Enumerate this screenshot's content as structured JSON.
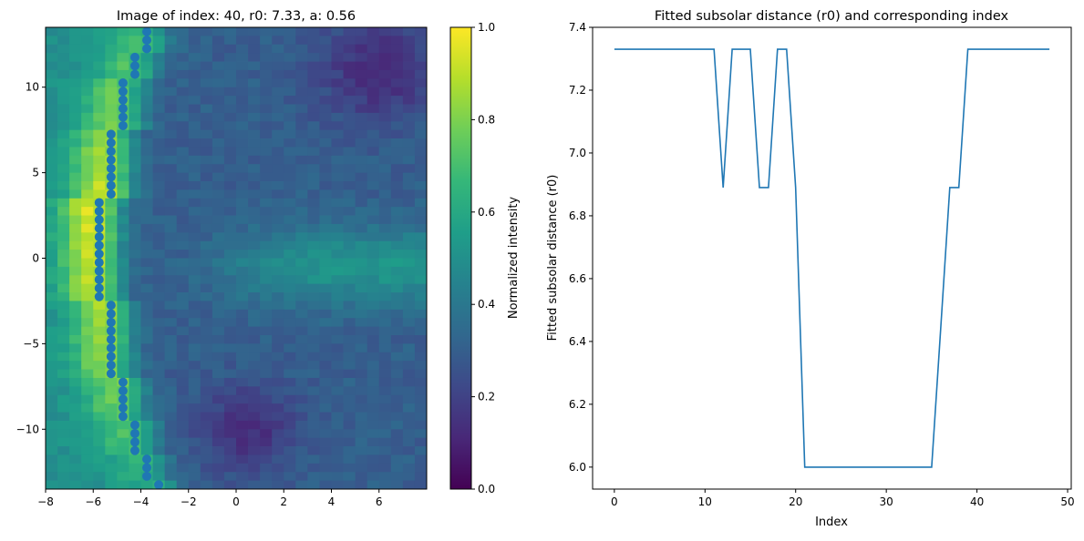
{
  "chart_data": [
    {
      "type": "heatmap",
      "title": "Image of index: 40, r0: 7.33, a: 0.56",
      "xlabel": "",
      "ylabel": "",
      "xlim": [
        -8,
        8
      ],
      "ylim": [
        -13.5,
        13.5
      ],
      "cell_size": 0.5,
      "xticks": [
        -8,
        -6,
        -4,
        -2,
        0,
        2,
        4,
        6
      ],
      "yticks": [
        -10,
        -5,
        0,
        5,
        10
      ],
      "colormap": "viridis",
      "colorbar": {
        "label": "Normalized intensity",
        "range": [
          0,
          1
        ],
        "ticks": [
          "0.0",
          "0.2",
          "0.4",
          "0.6",
          "0.8",
          "1.0"
        ]
      },
      "intensity_model": {
        "left_of_ridge_level": 0.5,
        "ridge_peak": [
          [
            13.25,
            0.66
          ],
          [
            8,
            0.8
          ],
          [
            3,
            0.95
          ],
          [
            0,
            0.92
          ],
          [
            -3,
            0.88
          ],
          [
            -8,
            0.78
          ],
          [
            -13.25,
            0.62
          ]
        ],
        "background_level": 0.3,
        "background_features": [
          {
            "kind": "bright-band",
            "x_from": 0,
            "y_center": -0.5,
            "y_spread": 2.2,
            "delta": 0.22
          },
          {
            "kind": "dark-blob",
            "x_center": 6,
            "y_center": 11,
            "x_spread": 2.5,
            "y_spread": 3,
            "delta": -0.18
          },
          {
            "kind": "dark-blob",
            "x_center": 0.5,
            "y_center": -10,
            "x_spread": 2,
            "y_spread": 2.5,
            "delta": -0.17
          }
        ]
      },
      "scatter": {
        "color": "#1f77b4",
        "groups": [
          {
            "x": -3.75,
            "y": [
              13.25,
              12.75,
              12.25
            ]
          },
          {
            "x": -4.25,
            "y": [
              11.75,
              11.25,
              10.75
            ]
          },
          {
            "x": -4.75,
            "y": [
              10.25,
              9.75,
              9.25,
              8.75,
              8.25,
              7.75
            ]
          },
          {
            "x": -5.25,
            "y": [
              7.25,
              6.75,
              6.25,
              5.75,
              5.25,
              4.75,
              4.25,
              3.75
            ]
          },
          {
            "x": -5.75,
            "y": [
              3.25,
              2.75,
              2.25,
              1.75,
              1.25,
              0.75,
              0.25,
              -0.25,
              -0.75,
              -1.25,
              -1.75,
              -2.25
            ]
          },
          {
            "x": -5.25,
            "y": [
              -2.75,
              -3.25,
              -3.75,
              -4.25,
              -4.75,
              -5.25,
              -5.75,
              -6.25,
              -6.75
            ]
          },
          {
            "x": -4.75,
            "y": [
              -7.25,
              -7.75,
              -8.25,
              -8.75,
              -9.25
            ]
          },
          {
            "x": -4.25,
            "y": [
              -9.75,
              -10.25,
              -10.75,
              -11.25
            ]
          },
          {
            "x": -3.75,
            "y": [
              -11.75,
              -12.25,
              -12.75
            ]
          },
          {
            "x": -3.25,
            "y": [
              -13.25
            ]
          }
        ]
      }
    },
    {
      "type": "line",
      "title": "Fitted subsolar distance (r0) and corresponding index",
      "xlabel": "Index",
      "ylabel": "Fitted subsolar distance (r0)",
      "xlim": [
        -2.4,
        50.4
      ],
      "ylim": [
        5.93,
        7.4
      ],
      "xticks": [
        "0",
        "10",
        "20",
        "30",
        "40",
        "50"
      ],
      "yticks": [
        "6.0",
        "6.2",
        "6.4",
        "6.6",
        "6.8",
        "7.0",
        "7.2",
        "7.4"
      ],
      "grid": false,
      "series": [
        {
          "name": "r0",
          "color": "#1f77b4",
          "x": [
            0,
            1,
            2,
            3,
            4,
            5,
            6,
            7,
            8,
            9,
            10,
            11,
            12,
            13,
            14,
            15,
            16,
            17,
            18,
            19,
            20,
            21,
            22,
            23,
            24,
            25,
            26,
            27,
            28,
            29,
            30,
            31,
            32,
            33,
            34,
            35,
            36,
            37,
            38,
            39,
            40,
            41,
            42,
            43,
            44,
            45,
            46,
            47,
            48
          ],
          "values": [
            7.33,
            7.33,
            7.33,
            7.33,
            7.33,
            7.33,
            7.33,
            7.33,
            7.33,
            7.33,
            7.33,
            7.33,
            6.89,
            7.33,
            7.33,
            7.33,
            6.89,
            6.89,
            7.33,
            7.33,
            6.89,
            6.0,
            6.0,
            6.0,
            6.0,
            6.0,
            6.0,
            6.0,
            6.0,
            6.0,
            6.0,
            6.0,
            6.0,
            6.0,
            6.0,
            6.0,
            6.44,
            6.89,
            6.89,
            7.33,
            7.33,
            7.33,
            7.33,
            7.33,
            7.33,
            7.33,
            7.33,
            7.33,
            7.33
          ]
        }
      ]
    }
  ]
}
